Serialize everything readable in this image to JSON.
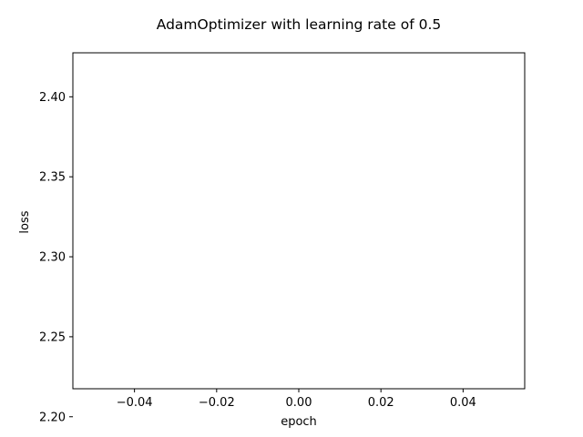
{
  "chart_data": {
    "type": "line",
    "title": "AdamOptimizer with learning rate of 0.5",
    "xlabel": "epoch",
    "ylabel": "loss",
    "xlim": [
      -0.055,
      0.055
    ],
    "ylim": [
      2.2175,
      2.4275
    ],
    "xticks": [
      -0.04,
      -0.02,
      0.0,
      0.02,
      0.04
    ],
    "xtick_labels": [
      "−0.04",
      "−0.02",
      "0.00",
      "0.02",
      "0.04"
    ],
    "yticks": [
      2.2,
      2.25,
      2.3,
      2.35,
      2.4
    ],
    "ytick_labels": [
      "2.20",
      "2.25",
      "2.30",
      "2.35",
      "2.40"
    ],
    "grid": false,
    "series": []
  },
  "colors": {
    "axes": "#000000",
    "background": "#ffffff"
  }
}
